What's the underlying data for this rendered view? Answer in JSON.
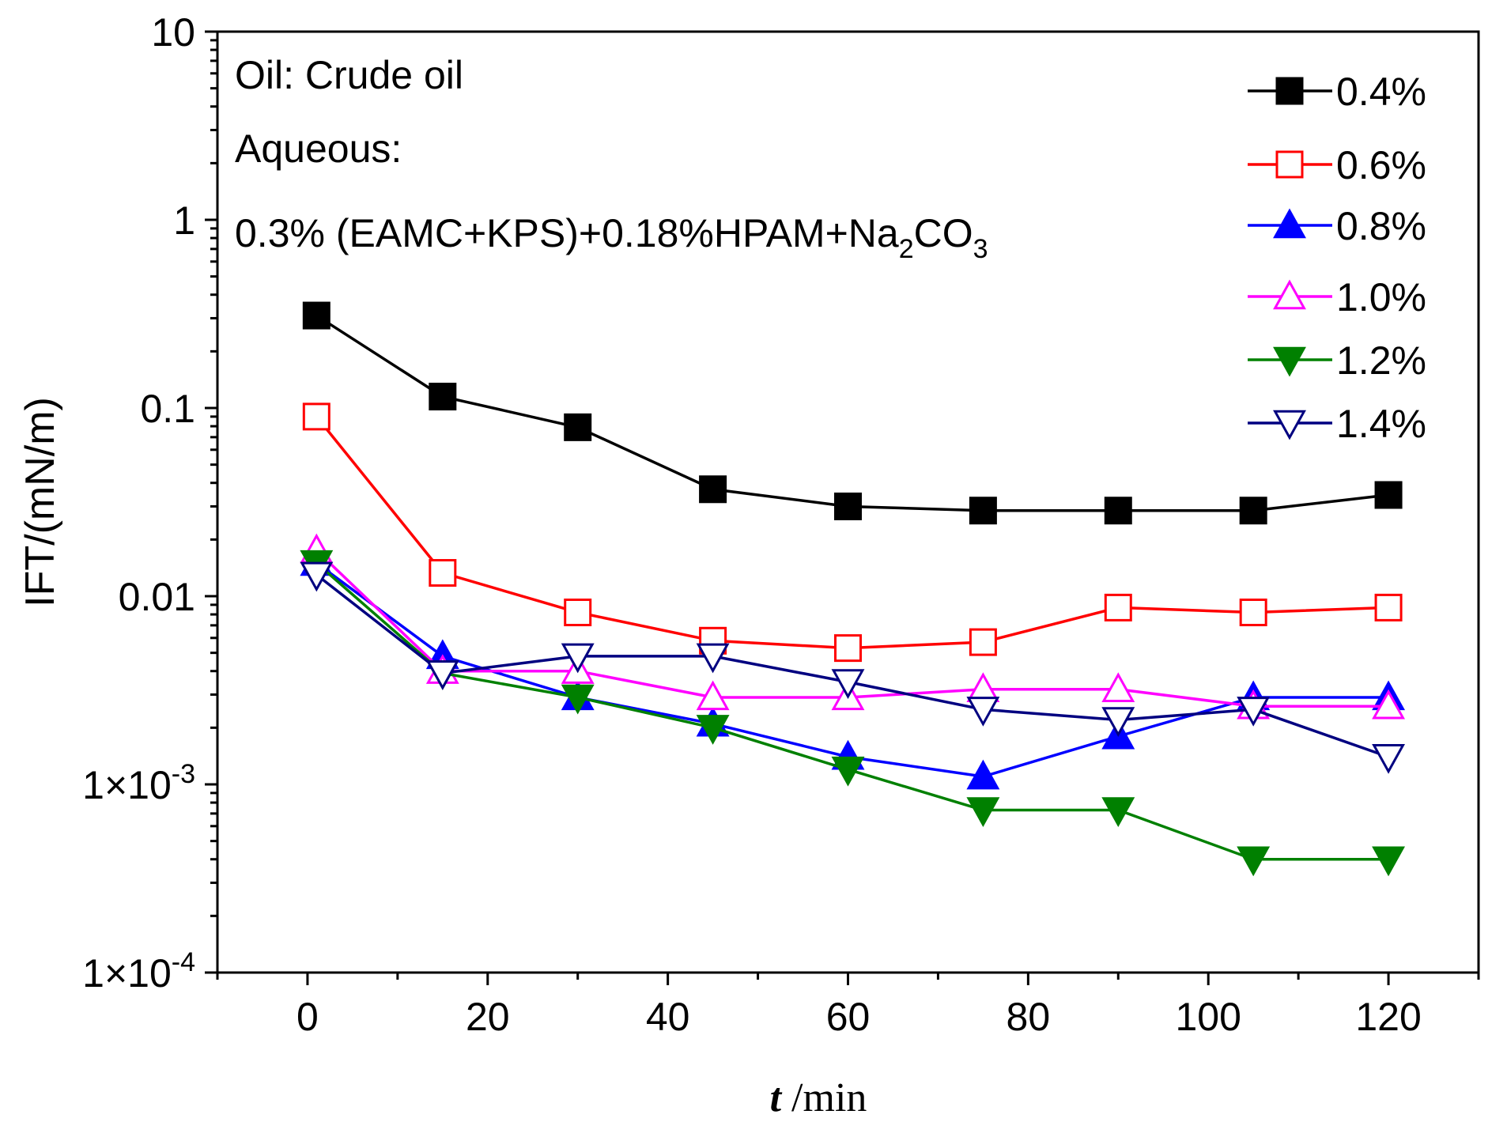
{
  "chart_data": {
    "type": "line",
    "x_title": {
      "italic_part": "t",
      "rest": " /min"
    },
    "y_title": "IFT/(mN/m)",
    "y_scale": "log",
    "xlim": [
      -10,
      130
    ],
    "ylim": [
      0.0001,
      10
    ],
    "x_ticks": [
      0,
      20,
      40,
      60,
      80,
      100,
      120
    ],
    "x_tick_labels": [
      "0",
      "20",
      "40",
      "60",
      "80",
      "100",
      "120"
    ],
    "y_ticks": [
      {
        "value": 10,
        "label": "10",
        "exp": ""
      },
      {
        "value": 1,
        "label": "1",
        "exp": ""
      },
      {
        "value": 0.1,
        "label": "0.1",
        "exp": ""
      },
      {
        "value": 0.01,
        "label": "0.01",
        "exp": ""
      },
      {
        "value": 0.001,
        "label": "1×10",
        "exp": "-3"
      },
      {
        "value": 0.0001,
        "label": "1×10",
        "exp": "-4"
      }
    ],
    "annotations": {
      "line1": "Oil: Crude oil",
      "line2": "Aqueous:",
      "line3_main": "0.3% (EAMC+KPS)+0.18%HPAM+Na",
      "line3_sub1": "2",
      "line3_mid": "CO",
      "line3_sub2": "3"
    },
    "series": [
      {
        "name": "0.4%",
        "color": "#000000",
        "marker": "square",
        "filled": true,
        "x": [
          1,
          15,
          30,
          45,
          60,
          75,
          90,
          105,
          120
        ],
        "y": [
          0.31,
          0.115,
          0.079,
          0.037,
          0.03,
          0.0285,
          0.0285,
          0.0285,
          0.0345
        ]
      },
      {
        "name": "0.6%",
        "color": "#ff0000",
        "marker": "square",
        "filled": false,
        "x": [
          1,
          15,
          30,
          45,
          60,
          75,
          90,
          105,
          120
        ],
        "y": [
          0.09,
          0.0133,
          0.0082,
          0.0058,
          0.0053,
          0.0057,
          0.0087,
          0.0082,
          0.0087
        ]
      },
      {
        "name": "0.8%",
        "color": "#0000ff",
        "marker": "triangle-up",
        "filled": true,
        "x": [
          1,
          15,
          30,
          45,
          60,
          75,
          90,
          105,
          120
        ],
        "y": [
          0.015,
          0.0048,
          0.0029,
          0.0021,
          0.0014,
          0.0011,
          0.0018,
          0.0029,
          0.0029
        ]
      },
      {
        "name": "1.0%",
        "color": "#ff00ff",
        "marker": "triangle-up",
        "filled": false,
        "x": [
          1,
          15,
          30,
          45,
          60,
          75,
          90,
          105,
          120
        ],
        "y": [
          0.0175,
          0.004,
          0.004,
          0.0029,
          0.0029,
          0.0032,
          0.0032,
          0.0026,
          0.0026
        ]
      },
      {
        "name": "1.2%",
        "color": "#008000",
        "marker": "triangle-down",
        "filled": true,
        "x": [
          1,
          15,
          30,
          45,
          60,
          75,
          90,
          105,
          120
        ],
        "y": [
          0.015,
          0.0039,
          0.0029,
          0.002,
          0.0012,
          0.00073,
          0.00073,
          0.0004,
          0.0004
        ]
      },
      {
        "name": "1.4%",
        "color": "#000080",
        "marker": "triangle-down",
        "filled": false,
        "x": [
          1,
          15,
          30,
          45,
          60,
          75,
          90,
          105,
          120
        ],
        "y": [
          0.013,
          0.0039,
          0.0048,
          0.0048,
          0.0035,
          0.0025,
          0.0022,
          0.0025,
          0.0014
        ]
      }
    ]
  }
}
